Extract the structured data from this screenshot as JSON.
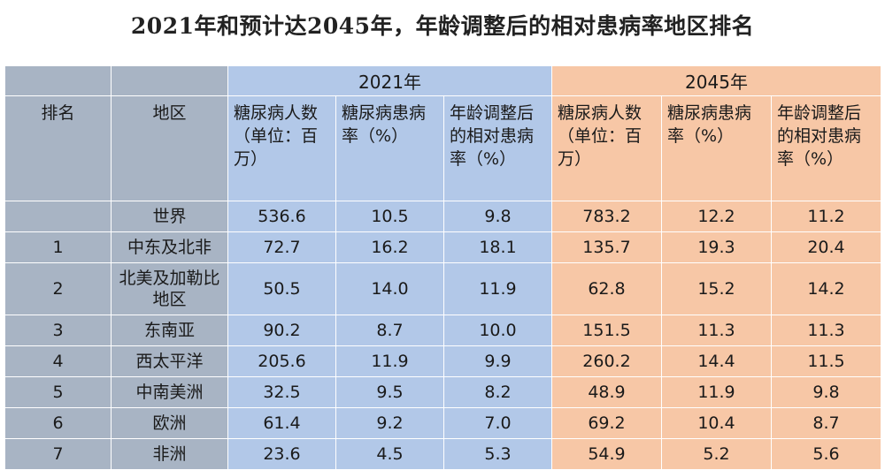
{
  "title": "2021年和预计达2045年，年龄调整后的相对患病率地区排名",
  "header": {
    "group_2021": "2021年",
    "group_2045": "2045年",
    "rank": "排名",
    "region": "地区",
    "cols_2021": [
      "糖尿病人数（单位：百万）",
      "糖尿病患病率（%）",
      "年龄调整后的相对患病率（%）"
    ],
    "cols_2045": [
      "糖尿病人数（单位：百万）",
      "糖尿病患病率（%）",
      "年龄调整后的相对患病率（%）"
    ]
  },
  "rows": [
    {
      "rank": "",
      "region": "世界",
      "v2021": [
        "536.6",
        "10.5",
        "9.8"
      ],
      "v2045": [
        "783.2",
        "12.2",
        "11.2"
      ]
    },
    {
      "rank": "1",
      "region": "中东及北非",
      "v2021": [
        "72.7",
        "16.2",
        "18.1"
      ],
      "v2045": [
        "135.7",
        "19.3",
        "20.4"
      ]
    },
    {
      "rank": "2",
      "region": "北美及加勒比地区",
      "v2021": [
        "50.5",
        "14.0",
        "11.9"
      ],
      "v2045": [
        "62.8",
        "15.2",
        "14.2"
      ]
    },
    {
      "rank": "3",
      "region": "东南亚",
      "v2021": [
        "90.2",
        "8.7",
        "10.0"
      ],
      "v2045": [
        "151.5",
        "11.3",
        "11.3"
      ]
    },
    {
      "rank": "4",
      "region": "西太平洋",
      "v2021": [
        "205.6",
        "11.9",
        "9.9"
      ],
      "v2045": [
        "260.2",
        "14.4",
        "11.5"
      ]
    },
    {
      "rank": "5",
      "region": "中南美洲",
      "v2021": [
        "32.5",
        "9.5",
        "8.2"
      ],
      "v2045": [
        "48.9",
        "11.9",
        "9.8"
      ]
    },
    {
      "rank": "6",
      "region": "欧洲",
      "v2021": [
        "61.4",
        "9.2",
        "7.0"
      ],
      "v2045": [
        "69.2",
        "10.4",
        "8.7"
      ]
    },
    {
      "rank": "7",
      "region": "非洲",
      "v2021": [
        "23.6",
        "4.5",
        "5.3"
      ],
      "v2045": [
        "54.9",
        "5.2",
        "5.6"
      ]
    }
  ]
}
